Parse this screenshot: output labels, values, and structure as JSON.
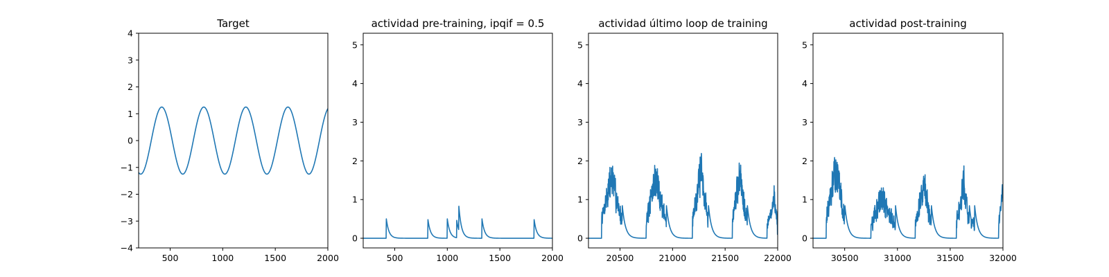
{
  "colors": {
    "series": "#1f77b4"
  },
  "chart_data": [
    {
      "type": "line",
      "title": "Target",
      "xlim": [
        200,
        2000
      ],
      "ylim": [
        -4,
        4
      ],
      "xticks": [
        500,
        1000,
        1500,
        2000
      ],
      "xtick_labels": [
        "500",
        "1000",
        "1500",
        "2000"
      ],
      "yticks": [
        -4,
        -3,
        -2,
        -1,
        0,
        1,
        2,
        3,
        4
      ],
      "ytick_labels": [
        "−4",
        "−3",
        "−2",
        "−1",
        "0",
        "1",
        "2",
        "3",
        "4"
      ],
      "series": [
        {
          "kind": "sine",
          "amplitude": 1.25,
          "period": 400,
          "phase_x": 220,
          "x_start": 200,
          "x_end": 2000
        }
      ]
    },
    {
      "type": "line",
      "title": "actividad pre-training, ipqif = 0.5",
      "xlim": [
        200,
        2000
      ],
      "ylim": [
        -0.25,
        5.3
      ],
      "xticks": [
        500,
        1000,
        1500,
        2000
      ],
      "xtick_labels": [
        "500",
        "1000",
        "1500",
        "2000"
      ],
      "yticks": [
        0,
        1,
        2,
        3,
        4,
        5
      ],
      "ytick_labels": [
        "0",
        "1",
        "2",
        "3",
        "4",
        "5"
      ],
      "series": [
        {
          "kind": "spikes",
          "x_start": 200,
          "x_end": 2000,
          "decay": 25,
          "spikes": [
            [
              420,
              0.5
            ],
            [
              815,
              0.5
            ],
            [
              1000,
              0.5
            ],
            [
              1090,
              0.45
            ],
            [
              1110,
              0.62
            ],
            [
              1330,
              0.5
            ],
            [
              1825,
              0.5
            ]
          ]
        }
      ]
    },
    {
      "type": "line",
      "title": "actividad último loop de training",
      "xlim": [
        20200,
        22000
      ],
      "ylim": [
        -0.25,
        5.3
      ],
      "xticks": [
        20500,
        21000,
        21500,
        22000
      ],
      "xtick_labels": [
        "20500",
        "21000",
        "21500",
        "22000"
      ],
      "yticks": [
        0,
        1,
        2,
        3,
        4,
        5
      ],
      "ytick_labels": [
        "0",
        "1",
        "2",
        "3",
        "4",
        "5"
      ],
      "series": [
        {
          "kind": "bursts",
          "x_start": 20200,
          "x_end": 22000,
          "decay": 30,
          "seed": 7,
          "bursts": [
            {
              "start": 20325,
              "rise_end": 20420,
              "fall_end": 20520,
              "peak": 2.0
            },
            {
              "start": 20750,
              "rise_end": 20840,
              "fall_end": 20940,
              "peak": 1.95
            },
            {
              "start": 21190,
              "rise_end": 21270,
              "fall_end": 21340,
              "peak": 2.15
            },
            {
              "start": 21570,
              "rise_end": 21640,
              "fall_end": 21710,
              "peak": 2.05
            },
            {
              "start": 21900,
              "rise_end": 21970,
              "fall_end": 22000,
              "peak": 1.3
            }
          ]
        }
      ]
    },
    {
      "type": "line",
      "title": "actividad post-training",
      "xlim": [
        30200,
        32000
      ],
      "ylim": [
        -0.25,
        5.3
      ],
      "xticks": [
        30500,
        31000,
        31500,
        32000
      ],
      "xtick_labels": [
        "30500",
        "31000",
        "31500",
        "32000"
      ],
      "yticks": [
        0,
        1,
        2,
        3,
        4,
        5
      ],
      "ytick_labels": [
        "0",
        "1",
        "2",
        "3",
        "4",
        "5"
      ],
      "series": [
        {
          "kind": "bursts",
          "x_start": 30200,
          "x_end": 32000,
          "decay": 30,
          "seed": 13,
          "bursts": [
            {
              "start": 30325,
              "rise_end": 30420,
              "fall_end": 30500,
              "peak": 2.25
            },
            {
              "start": 30750,
              "rise_end": 30850,
              "fall_end": 30980,
              "peak": 1.35
            },
            {
              "start": 31170,
              "rise_end": 31250,
              "fall_end": 31320,
              "peak": 1.75
            },
            {
              "start": 31560,
              "rise_end": 31630,
              "fall_end": 31680,
              "peak": 1.8
            },
            {
              "start": 31700,
              "rise_end": 31715,
              "fall_end": 31730,
              "peak": 0.6
            },
            {
              "start": 31960,
              "rise_end": 32000,
              "fall_end": 32000,
              "peak": 1.5
            }
          ]
        }
      ]
    }
  ]
}
